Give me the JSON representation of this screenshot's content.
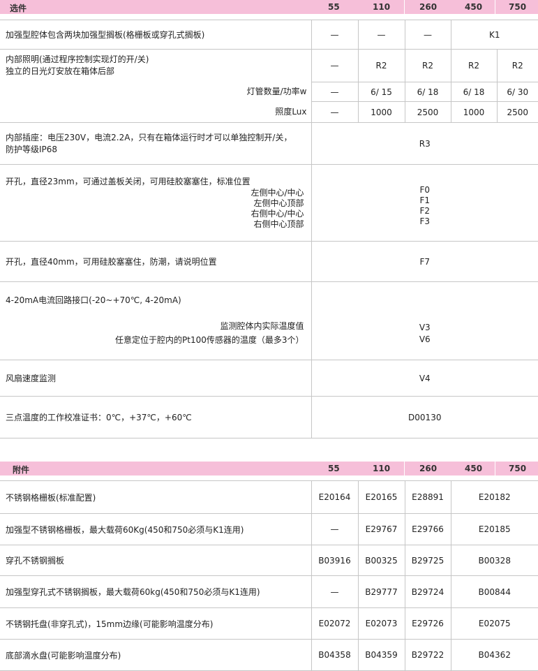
{
  "options_header": {
    "title": "选件",
    "cols": [
      "55",
      "110",
      "260",
      "450",
      "750"
    ]
  },
  "options": {
    "k1": {
      "label": "加强型腔体包含两块加强型搁板(格栅板或穿孔式搁板)",
      "v": [
        "—",
        "—",
        "—",
        "K1"
      ]
    },
    "light": {
      "label1": "内部照明(通过程序控制实现灯的开/关)",
      "label2": "独立的日光灯安放在箱体后部",
      "v": [
        "—",
        "R2",
        "R2",
        "R2",
        "R2"
      ],
      "lamp_label": "灯管数量/功率w",
      "lamp_v": [
        "—",
        "6/ 15",
        "6/ 18",
        "6/ 18",
        "6/ 30"
      ],
      "lux_label": "照度Lux",
      "lux_v": [
        "—",
        "1000",
        "2500",
        "1000",
        "2500"
      ]
    },
    "r3": {
      "label1": "内部插座：电压230V，电流2.2A，只有在箱体运行时才可以单独控制开/关，",
      "label2": "防护等级IP68",
      "v": "R3"
    },
    "f": {
      "label": "开孔，直径23mm，可通过盖板关闭，可用硅胶塞塞住，标准位置",
      "subs": [
        "左侧中心/中心",
        "左侧中心顶部",
        "右侧中心/中心",
        "右侧中心顶部"
      ],
      "codes": [
        "F0",
        "F1",
        "F2",
        "F3"
      ]
    },
    "f7": {
      "label": "开孔，直径40mm，可用硅胶塞塞住，防潮，请说明位置",
      "v": "F7"
    },
    "v": {
      "label": "4-20mA电流回路接口(-20~+70℃, 4-20mA)",
      "subs": [
        "监测腔体内实际温度值",
        "任意定位于腔内的Pt100传感器的温度（最多3个）"
      ],
      "codes": [
        "V3",
        "V6"
      ]
    },
    "v4": {
      "label": "风扇速度监测",
      "v": "V4"
    },
    "d": {
      "label": "三点温度的工作校准证书：0℃，+37℃，+60℃",
      "v": "D00130"
    }
  },
  "accessories_header": {
    "title": "附件",
    "cols": [
      "55",
      "110",
      "260",
      "450",
      "750"
    ]
  },
  "accessories": [
    {
      "label": "不锈钢格栅板(标准配置)",
      "v": [
        "E20164",
        "E20165",
        "E28891",
        "E20182"
      ]
    },
    {
      "label": "加强型不锈钢格栅板，最大载荷60Kg(450和750必须与K1连用)",
      "v": [
        "—",
        "E29767",
        "E29766",
        "E20185"
      ]
    },
    {
      "label": "穿孔不锈钢搁板",
      "v": [
        "B03916",
        "B00325",
        "B29725",
        "B00328"
      ]
    },
    {
      "label": "加强型穿孔式不锈钢搁板，最大载荷60kg(450和750必须与K1连用)",
      "v": [
        "—",
        "B29777",
        "B29724",
        "B00844"
      ]
    },
    {
      "label": "不锈钢托盘(非穿孔式)，15mm边缘(可能影响温度分布)",
      "v": [
        "E02072",
        "E02073",
        "E29726",
        "E02075"
      ]
    },
    {
      "label": "底部滴水盘(可能影响温度分布)",
      "v": [
        "B04358",
        "B04359",
        "B29722",
        "B04362"
      ]
    }
  ],
  "colors": {
    "header_bg": "#f6bfd9",
    "border": "#c6c6c6"
  }
}
